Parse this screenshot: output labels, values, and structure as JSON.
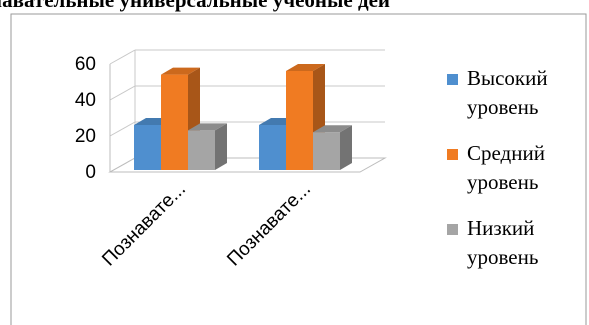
{
  "chart_data": {
    "type": "bar",
    "title": "навательные универсальные учебные дей",
    "categories": [
      "Познавате...",
      "Познавате..."
    ],
    "series": [
      {
        "name": "Высокий уровень",
        "values": [
          25,
          25
        ],
        "color": "#4f8fcf"
      },
      {
        "name": "Средний уровень",
        "values": [
          53,
          55
        ],
        "color": "#f07b22"
      },
      {
        "name": "Низкий уровень",
        "values": [
          22,
          21
        ],
        "color": "#a5a5a5"
      }
    ],
    "legend_labels": [
      [
        "Высокий",
        "уровень"
      ],
      [
        "Средний",
        "уровень"
      ],
      [
        "Низкий",
        "уровень"
      ]
    ],
    "y_ticks": [
      "0",
      "20",
      "40",
      "60"
    ],
    "ylim": [
      0,
      60
    ],
    "grid": true,
    "legend_position": "right",
    "view": "3d-clustered"
  }
}
